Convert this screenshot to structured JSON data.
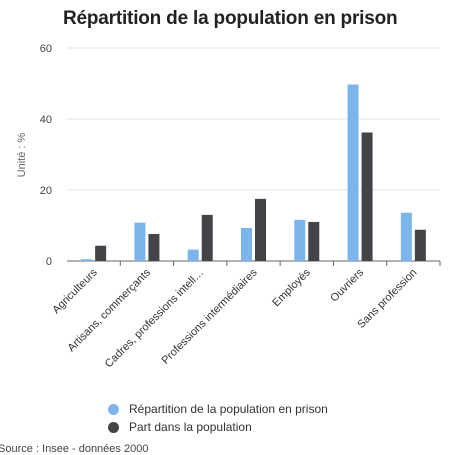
{
  "chart_data": {
    "type": "bar",
    "title": "Répartition de la population en prison",
    "ylabel": "Unité : %",
    "xlabel": "",
    "ylim": [
      0,
      60
    ],
    "yticks": [
      0,
      20,
      40,
      60
    ],
    "categories": [
      "Agriculteurs",
      "Artisans, commerçants",
      "Cadres, professions intell…",
      "Professions intermédiaires",
      "Employés",
      "Ouvriers",
      "Sans profession"
    ],
    "series": [
      {
        "name": "Répartition de la population en prison",
        "color": "#7cb5ec",
        "values": [
          0.5,
          10.8,
          3.2,
          9.3,
          11.6,
          49.7,
          13.6
        ]
      },
      {
        "name": "Part dans la population",
        "color": "#434348",
        "values": [
          4.3,
          7.6,
          13.0,
          17.5,
          11.0,
          36.2,
          8.8
        ]
      }
    ],
    "legend": "bottom",
    "grid": true
  },
  "source": "Source : Insee - données 2000"
}
